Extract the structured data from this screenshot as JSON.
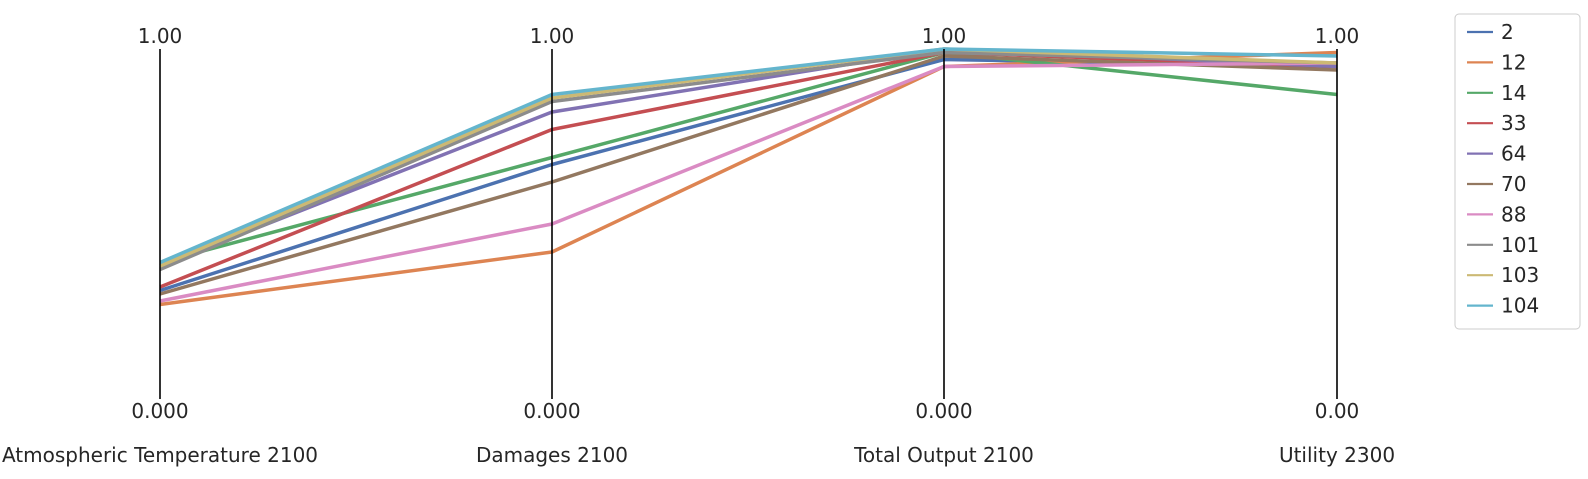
{
  "chart_data": {
    "type": "line",
    "subtype": "parallel-coordinates",
    "axes": [
      {
        "name": "Atmospheric Temperature 2100",
        "max_label": "1.00",
        "min_label": "0.000"
      },
      {
        "name": "Damages 2100",
        "max_label": "1.00",
        "min_label": "0.000"
      },
      {
        "name": "Total Output 2100",
        "max_label": "1.00",
        "min_label": "0.000"
      },
      {
        "name": "Utility 2300",
        "max_label": "1.00",
        "min_label": "0.00"
      }
    ],
    "ylim": [
      0,
      1
    ],
    "grid": false,
    "legend_placement": "top-right",
    "series": [
      {
        "name": "2",
        "color": "#4c72b0",
        "values": [
          0.31,
          0.67,
          0.97,
          0.95
        ]
      },
      {
        "name": "12",
        "color": "#dd8452",
        "values": [
          0.27,
          0.42,
          0.95,
          0.99
        ]
      },
      {
        "name": "14",
        "color": "#55a868",
        "values": [
          0.39,
          0.69,
          0.99,
          0.87
        ]
      },
      {
        "name": "33",
        "color": "#c44e52",
        "values": [
          0.32,
          0.77,
          0.99,
          0.95
        ]
      },
      {
        "name": "64",
        "color": "#8172b3",
        "values": [
          0.38,
          0.82,
          1.0,
          0.95
        ]
      },
      {
        "name": "70",
        "color": "#937860",
        "values": [
          0.3,
          0.62,
          0.98,
          0.94
        ]
      },
      {
        "name": "88",
        "color": "#da8bc3",
        "values": [
          0.28,
          0.5,
          0.95,
          0.96
        ]
      },
      {
        "name": "101",
        "color": "#8c8c8c",
        "values": [
          0.37,
          0.85,
          0.99,
          0.96
        ]
      },
      {
        "name": "103",
        "color": "#ccb974",
        "values": [
          0.38,
          0.86,
          1.0,
          0.96
        ]
      },
      {
        "name": "104",
        "color": "#64b5cd",
        "values": [
          0.39,
          0.87,
          1.0,
          0.98
        ]
      }
    ]
  }
}
